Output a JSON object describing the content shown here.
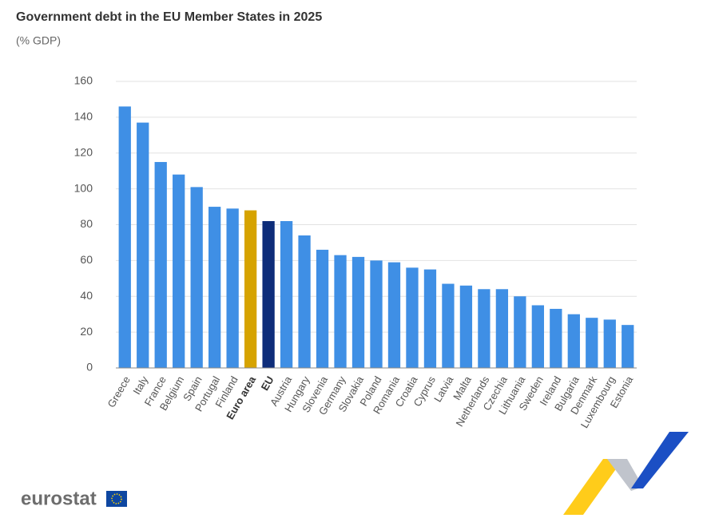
{
  "chart_data": {
    "type": "bar",
    "title": "Government debt in the EU Member States in 2025",
    "subtitle": "(% GDP)",
    "categories": [
      "Greece",
      "Italy",
      "France",
      "Belgium",
      "Spain",
      "Portugal",
      "Finland",
      "Euro area",
      "EU",
      "Austria",
      "Hungary",
      "Slovenia",
      "Germany",
      "Slovakia",
      "Poland",
      "Romania",
      "Croatia",
      "Cyprus",
      "Latvia",
      "Malta",
      "Netherlands",
      "Czechia",
      "Lithuania",
      "Sweden",
      "Ireland",
      "Bulgaria",
      "Denmark",
      "Luxembourg",
      "Estonia"
    ],
    "values": [
      146,
      137,
      115,
      108,
      101,
      90,
      89,
      88,
      82,
      82,
      74,
      66,
      63,
      62,
      60,
      59,
      56,
      55,
      47,
      46,
      44,
      44,
      40,
      35,
      33,
      30,
      28,
      27,
      24
    ],
    "color": "#3f8fe5",
    "colors": [
      "#3f8fe5",
      "#3f8fe5",
      "#3f8fe5",
      "#3f8fe5",
      "#3f8fe5",
      "#3f8fe5",
      "#3f8fe5",
      "#d6a300",
      "#0e2d7a",
      "#3f8fe5",
      "#3f8fe5",
      "#3f8fe5",
      "#3f8fe5",
      "#3f8fe5",
      "#3f8fe5",
      "#3f8fe5",
      "#3f8fe5",
      "#3f8fe5",
      "#3f8fe5",
      "#3f8fe5",
      "#3f8fe5",
      "#3f8fe5",
      "#3f8fe5",
      "#3f8fe5",
      "#3f8fe5",
      "#3f8fe5",
      "#3f8fe5",
      "#3f8fe5",
      "#3f8fe5"
    ],
    "ylim": [
      0,
      160
    ],
    "yticks": [
      0,
      20,
      40,
      60,
      80,
      100,
      120,
      140,
      160
    ],
    "grid": true
  },
  "logo": {
    "text": "eurostat"
  }
}
